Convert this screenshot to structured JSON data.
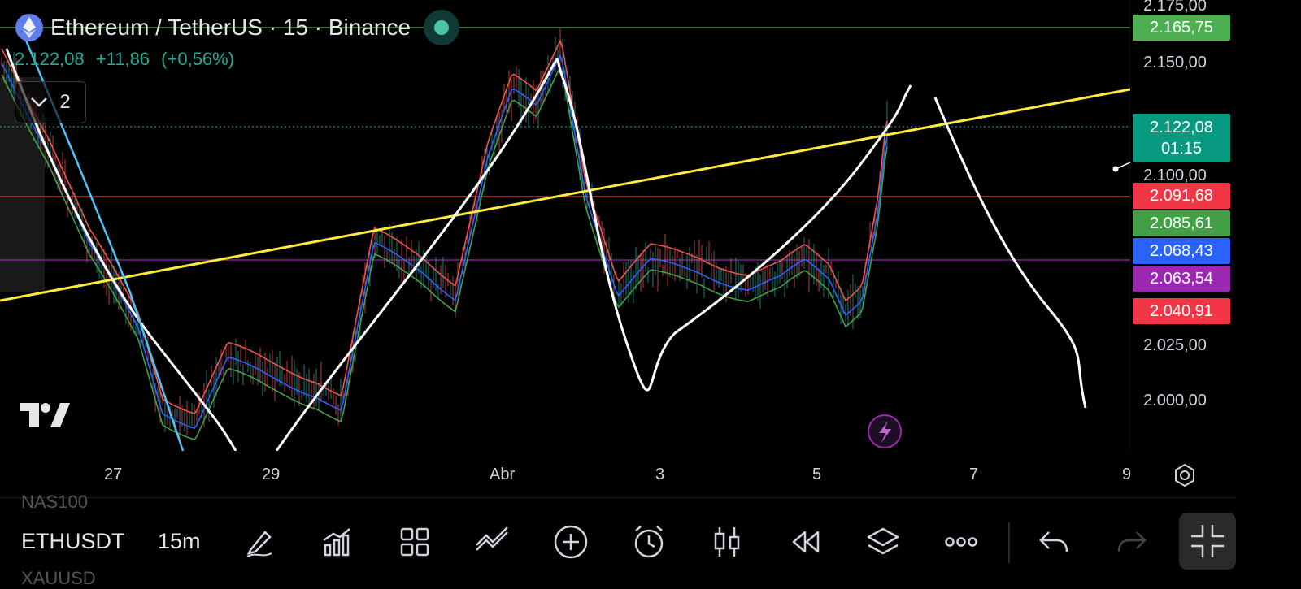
{
  "header": {
    "title": "Ethereum / TetherUS · 15 · Binance",
    "last_price": "2.122,08",
    "change": "+11,86",
    "change_pct": "(+0,56%)",
    "indicators_count": "2"
  },
  "price_axis": {
    "labels": [
      "2.175,00",
      "2.150,00",
      "2.100,00",
      "2.025,00",
      "2.000,00"
    ],
    "badges": [
      {
        "id": "hline-top",
        "text": "2.165,75",
        "color": "#4caf50"
      },
      {
        "id": "last",
        "text": "2.122,08",
        "sub": "01:15",
        "color": "#089981"
      },
      {
        "id": "red-line",
        "text": "2.091,68",
        "color": "#f23645"
      },
      {
        "id": "green-ma",
        "text": "2.085,61",
        "color": "#43a047"
      },
      {
        "id": "blue-ma",
        "text": "2.068,43",
        "color": "#2962ff"
      },
      {
        "id": "purple-line",
        "text": "2.063,54",
        "color": "#9c27b0"
      },
      {
        "id": "red-ma",
        "text": "2.040,91",
        "color": "#f23645"
      }
    ]
  },
  "time_axis": {
    "labels": [
      "27",
      "29",
      "Abr",
      "3",
      "5",
      "7",
      "9"
    ]
  },
  "bottom_bar": {
    "prev_symbol": "NAS100",
    "symbol": "ETHUSDT",
    "next_symbol": "XAUUSD",
    "interval": "15m",
    "tools": [
      "pencil-icon",
      "indicators-icon",
      "layout-grid-icon",
      "compare-icon",
      "add-icon",
      "alert-icon",
      "candles-icon",
      "replay-icon",
      "layers-icon",
      "more-icon",
      "undo-icon",
      "redo-icon"
    ]
  },
  "colors": {
    "up": "#26a69a",
    "down": "#ef5350",
    "yellow_trend": "#ffeb3b",
    "white_drawing": "#ffffff",
    "purple": "#9c27b0",
    "accent_green": "#4caf50"
  }
}
